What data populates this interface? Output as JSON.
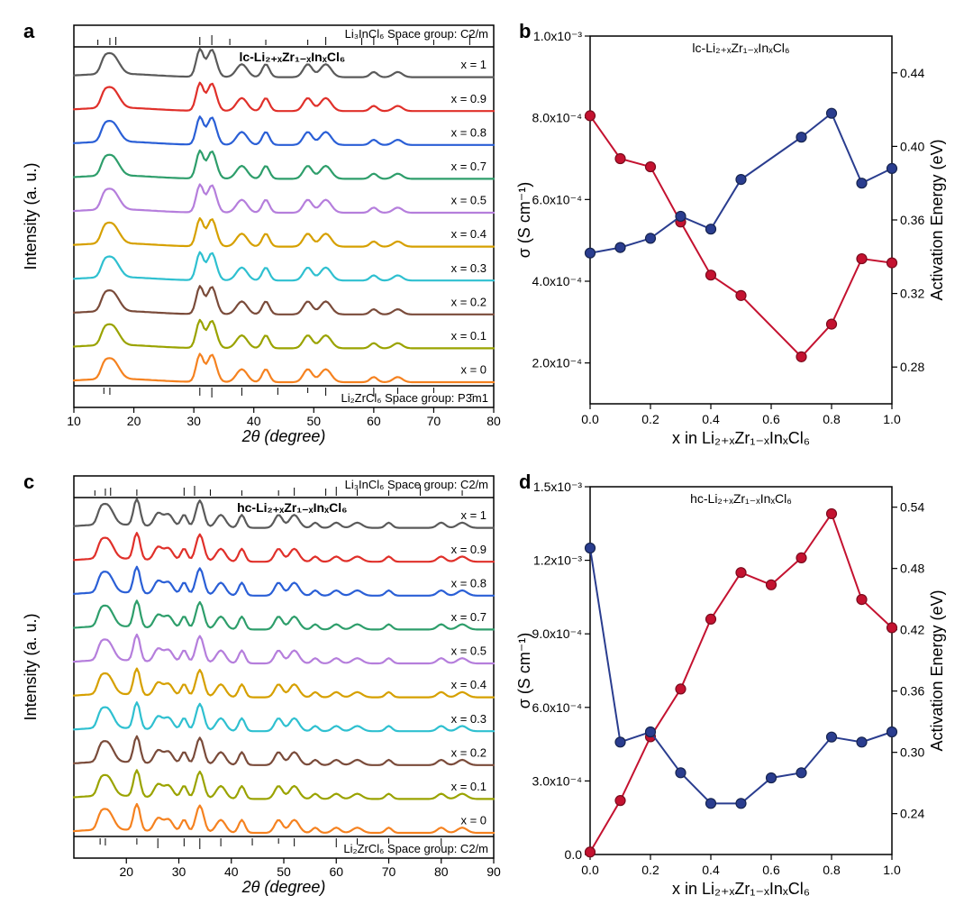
{
  "figure": {
    "panel_a": {
      "label": "a",
      "type": "xrd-stack",
      "title": "lc-Li₂₊ₓZr₁₋ₓInₓCl₆",
      "ref_top": "Li₃InCl₆   Space group: C2/m",
      "ref_bottom": "Li₂ZrCl₆   Space group: P3̄m1",
      "x_axis": {
        "label": "2θ (degree)",
        "min": 10,
        "max": 80,
        "ticks": [
          10,
          20,
          30,
          40,
          50,
          60,
          70,
          80
        ]
      },
      "y_axis": {
        "label": "Intensity (a. u.)"
      },
      "series_labels": [
        "x = 1",
        "x = 0.9",
        "x = 0.8",
        "x = 0.7",
        "x = 0.5",
        "x = 0.4",
        "x = 0.3",
        "x = 0.2",
        "x = 0.1",
        "x = 0"
      ],
      "colors": [
        "#f58220",
        "#9aa300",
        "#7a4b3a",
        "#2fc0d0",
        "#d6a000",
        "#b57edc",
        "#2e9e6b",
        "#2a5fd6",
        "#e0302a",
        "#5a5a5a"
      ],
      "peaks": [
        15,
        16,
        17,
        31,
        33,
        38,
        42,
        49,
        52,
        60,
        64
      ],
      "ref_top_peaks": [
        14,
        16,
        17,
        31,
        33,
        36,
        42,
        49,
        52,
        58,
        60,
        64,
        70,
        76
      ],
      "ref_bottom_peaks": [
        15,
        16,
        31,
        33,
        38,
        44,
        49,
        52,
        60,
        64,
        70
      ]
    },
    "panel_b": {
      "label": "b",
      "type": "dual-axis-line",
      "title": "lc-Li₂₊ₓZr₁₋ₓInₓCl₆",
      "x_axis": {
        "label": "x in Li₂₊ₓZr₁₋ₓInₓCl₆",
        "min": 0,
        "max": 1,
        "ticks": [
          0.0,
          0.2,
          0.4,
          0.6,
          0.8,
          1.0
        ]
      },
      "left_axis": {
        "label": "σ (S cm⁻¹)",
        "color": "#c41230",
        "min": 0.0001,
        "max": 0.001,
        "ticks": [
          0.0002,
          0.0004,
          0.0006,
          0.0008,
          0.001
        ],
        "tick_labels": [
          "2.0x10⁻⁴",
          "4.0x10⁻⁴",
          "6.0x10⁻⁴",
          "8.0x10⁻⁴",
          "1.0x10⁻³"
        ]
      },
      "right_axis": {
        "label": "Activation Energy (eV)",
        "color": "#2a3d8f",
        "min": 0.26,
        "max": 0.46,
        "ticks": [
          0.28,
          0.32,
          0.36,
          0.4,
          0.44
        ],
        "tick_labels": [
          "0.28",
          "0.32",
          "0.36",
          "0.40",
          "0.44"
        ]
      },
      "x": [
        0.0,
        0.1,
        0.2,
        0.3,
        0.4,
        0.5,
        0.7,
        0.8,
        0.9,
        1.0
      ],
      "sigma": [
        0.000805,
        0.0007,
        0.00068,
        0.000545,
        0.000415,
        0.000365,
        0.000215,
        0.000295,
        0.000455,
        0.000445
      ],
      "ea": [
        0.342,
        0.345,
        0.35,
        0.362,
        0.355,
        0.382,
        0.405,
        0.418,
        0.38,
        0.388
      ]
    },
    "panel_c": {
      "label": "c",
      "type": "xrd-stack",
      "title": "hc-Li₂₊ₓZr₁₋ₓInₓCl₆",
      "ref_top": "Li₃InCl₆   Space group: C2/m",
      "ref_bottom": "Li₂ZrCl₆   Space group: C2/m",
      "x_axis": {
        "label": "2θ (degree)",
        "min": 10,
        "max": 90,
        "ticks": [
          20,
          30,
          40,
          50,
          60,
          70,
          80,
          90
        ]
      },
      "y_axis": {
        "label": "Intensity (a. u.)"
      },
      "series_labels": [
        "x = 1",
        "x = 0.9",
        "x = 0.8",
        "x = 0.7",
        "x = 0.5",
        "x = 0.4",
        "x = 0.3",
        "x = 0.2",
        "x = 0.1",
        "x = 0"
      ],
      "colors": [
        "#f58220",
        "#9aa300",
        "#7a4b3a",
        "#2fc0d0",
        "#d6a000",
        "#b57edc",
        "#2e9e6b",
        "#2a5fd6",
        "#e0302a",
        "#5a5a5a"
      ],
      "peaks": [
        15,
        16,
        17,
        22,
        26,
        28,
        31,
        34,
        38,
        42,
        49,
        52,
        56,
        60,
        64,
        70,
        80,
        84
      ],
      "ref_top_peaks": [
        14,
        16,
        17,
        22,
        31,
        33,
        36,
        42,
        49,
        52,
        58,
        60,
        64,
        70,
        76,
        84
      ],
      "ref_bottom_peaks": [
        15,
        16,
        22,
        26,
        31,
        34,
        38,
        44,
        49,
        52,
        60,
        64,
        70,
        80
      ]
    },
    "panel_d": {
      "label": "d",
      "type": "dual-axis-line",
      "title": "hc-Li₂₊ₓZr₁₋ₓInₓCl₆",
      "x_axis": {
        "label": "x in Li₂₊ₓZr₁₋ₓInₓCl₆",
        "min": 0,
        "max": 1,
        "ticks": [
          0.0,
          0.2,
          0.4,
          0.6,
          0.8,
          1.0
        ]
      },
      "left_axis": {
        "label": "σ (S cm⁻¹)",
        "color": "#c41230",
        "min": 0.0,
        "max": 0.0015,
        "ticks": [
          0.0,
          0.0003,
          0.0006,
          0.0009,
          0.0012,
          0.0015
        ],
        "tick_labels": [
          "0.0",
          "3.0x10⁻⁴",
          "6.0x10⁻⁴",
          "9.0x10⁻⁴",
          "1.2x10⁻³",
          "1.5x10⁻³"
        ]
      },
      "right_axis": {
        "label": "Activation Energy (eV)",
        "color": "#2a3d8f",
        "min": 0.2,
        "max": 0.56,
        "ticks": [
          0.24,
          0.3,
          0.36,
          0.42,
          0.48,
          0.54
        ],
        "tick_labels": [
          "0.24",
          "0.30",
          "0.36",
          "0.42",
          "0.48",
          "0.54"
        ]
      },
      "x": [
        0.0,
        0.1,
        0.2,
        0.3,
        0.4,
        0.5,
        0.7,
        0.8,
        0.9,
        1.0
      ],
      "sigma": [
        1e-05,
        0.00022,
        0.00048,
        0.000675,
        0.00096,
        0.00115,
        0.0011,
        0.00121,
        0.00139,
        0.00104,
        0.000925
      ],
      "sigma_x": [
        0.0,
        0.1,
        0.2,
        0.3,
        0.4,
        0.5,
        0.6,
        0.7,
        0.8,
        0.9,
        1.0
      ],
      "ea": [
        0.5,
        0.31,
        0.32,
        0.28,
        0.25,
        0.25,
        0.275,
        0.28,
        0.315,
        0.31,
        0.32
      ],
      "ea_x": [
        0.0,
        0.1,
        0.2,
        0.3,
        0.4,
        0.5,
        0.6,
        0.7,
        0.8,
        0.9,
        1.0
      ]
    },
    "styling": {
      "marker_radius": 5.5,
      "line_width": 2,
      "background": "#ffffff",
      "frame_color": "#000000"
    }
  }
}
